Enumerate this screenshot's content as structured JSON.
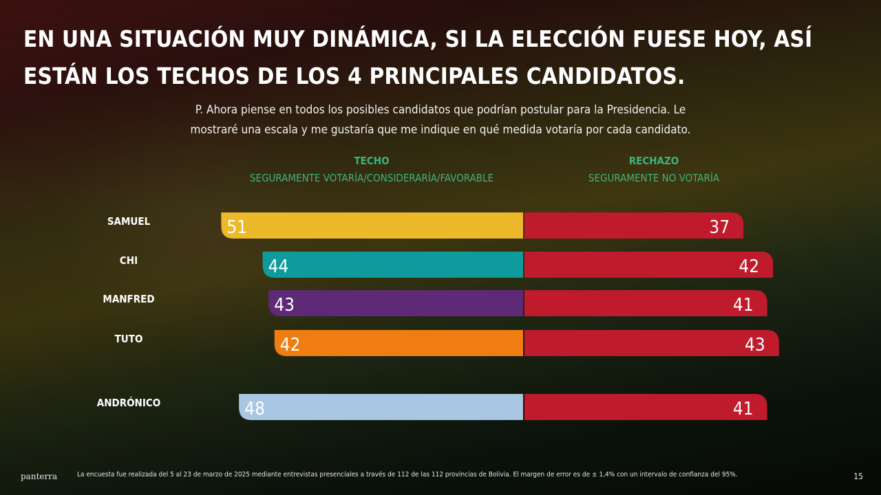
{
  "title_lines": [
    "EN UNA SITUACIÓN MUY DINÁMICA, SI LA ELECCIÓN FUESE HOY, ASÍ",
    "ESTÁN LOS TECHOS DE LOS 4 PRINCIPALES CANDIDATOS."
  ],
  "question_lines": [
    "P. Ahora piense en todos los posibles candidatos que podrían postular para la Presidencia. Le",
    "mostraré una escala y me gustaría que me indique en qué medida votaría por cada candidato."
  ],
  "headers": {
    "techo_title": "TECHO",
    "techo_sub": "SEGURAMENTE VOTARÍA/CONSIDERARÍA/FAVORABLE",
    "rechazo_title": "RECHAZO",
    "rechazo_sub": "SEGURAMENTE NO VOTARÍA"
  },
  "chart_data": {
    "type": "bar",
    "orientation": "horizontal-diverging",
    "categories": [
      "SAMUEL",
      "CHI",
      "MANFRED",
      "TUTO",
      "ANDRÓNICO"
    ],
    "series": [
      {
        "name": "TECHO",
        "values": [
          51,
          44,
          43,
          42,
          48
        ]
      },
      {
        "name": "RECHAZO",
        "values": [
          37,
          42,
          41,
          43,
          41
        ]
      }
    ],
    "techo_colors": [
      "#ecb92a",
      "#0f9a9b",
      "#5e2a78",
      "#ef7d11",
      "#a9c6e3"
    ],
    "rechazo_color": "#c01a2d",
    "grid": false,
    "legend": "none"
  },
  "footer": {
    "logo": "panterra",
    "note": "La encuesta fue realizada del 5 al 23 de marzo de 2025 mediante entrevistas presenciales a través de 112 de las 112 provincias de Bolivia. El margen de error es de ± 1,4% con un intervalo de confianza del 95%.",
    "page_number": "15"
  }
}
